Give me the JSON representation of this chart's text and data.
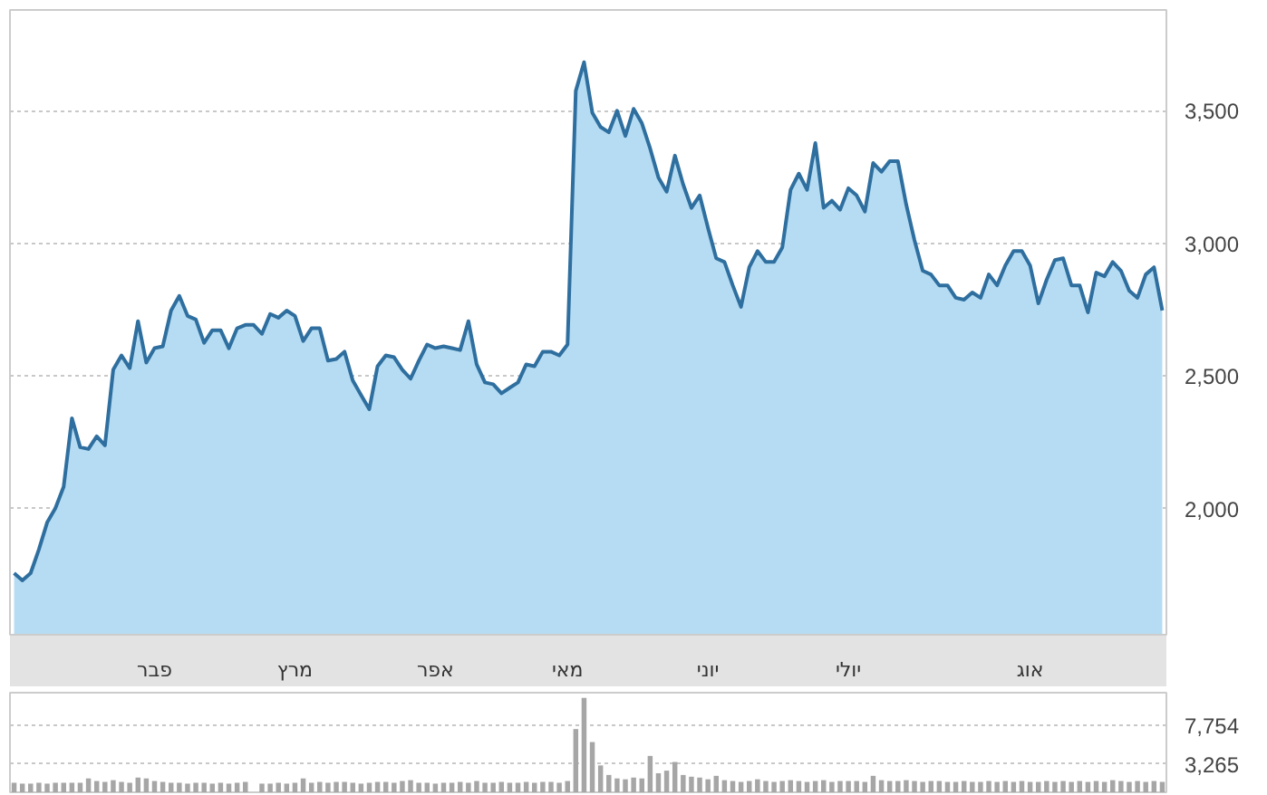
{
  "chart_data": [
    {
      "type": "area",
      "categories": [
        null,
        null,
        null,
        null,
        null,
        null,
        null,
        null,
        null,
        null,
        null,
        null,
        null,
        null,
        null,
        null,
        null,
        "פבר",
        null,
        null,
        null,
        null,
        null,
        null,
        null,
        null,
        null,
        null,
        null,
        null,
        null,
        null,
        null,
        null,
        "מרץ",
        null,
        null,
        null,
        null,
        null,
        null,
        null,
        null,
        null,
        null,
        null,
        null,
        null,
        null,
        null,
        null,
        "אפר",
        null,
        null,
        null,
        null,
        null,
        null,
        null,
        null,
        null,
        null,
        null,
        null,
        null,
        null,
        null,
        "מאי",
        null,
        null,
        null,
        null,
        null,
        null,
        null,
        null,
        null,
        null,
        null,
        null,
        null,
        null,
        null,
        null,
        "יוני",
        null,
        null,
        null,
        null,
        null,
        null,
        null,
        null,
        null,
        null,
        null,
        null,
        null,
        null,
        null,
        null,
        "יולי",
        null,
        null,
        null,
        null,
        null,
        null,
        null,
        null,
        null,
        null,
        null,
        null,
        null,
        null,
        null,
        null,
        null,
        null,
        null,
        null,
        null,
        "אוג",
        null,
        null,
        null,
        null,
        null,
        null,
        null,
        null,
        null,
        null,
        null,
        null,
        null,
        null,
        null,
        null
      ],
      "series": [
        {
          "color": "#2f6f9f",
          "values": [
            1757,
            1730,
            1757,
            1846,
            1948,
            2002,
            2083,
            2341,
            2232,
            2225,
            2273,
            2239,
            2524,
            2578,
            2530,
            2707,
            2551,
            2605,
            2612,
            2747,
            2802,
            2727,
            2713,
            2625,
            2673,
            2673,
            2605,
            2680,
            2693,
            2693,
            2659,
            2734,
            2720,
            2747,
            2727,
            2632,
            2680,
            2680,
            2558,
            2564,
            2592,
            2483,
            2429,
            2375,
            2537,
            2578,
            2571,
            2524,
            2490,
            2558,
            2619,
            2605,
            2612,
            2605,
            2598,
            2707,
            2544,
            2476,
            2469,
            2435,
            2456,
            2476,
            2544,
            2537,
            2592,
            2592,
            2578,
            2619,
            3575,
            3683,
            3493,
            3439,
            3419,
            3500,
            3405,
            3507,
            3453,
            3358,
            3249,
            3195,
            3331,
            3222,
            3134,
            3181,
            3059,
            2944,
            2930,
            2842,
            2761,
            2910,
            2971,
            2930,
            2930,
            2985,
            3202,
            3263,
            3202,
            3378,
            3134,
            3161,
            3127,
            3208,
            3181,
            3120,
            3303,
            3270,
            3310,
            3310,
            3147,
            3012,
            2897,
            2883,
            2842,
            2842,
            2795,
            2788,
            2815,
            2795,
            2883,
            2842,
            2917,
            2971,
            2971,
            2917,
            2774,
            2863,
            2937,
            2944,
            2842,
            2842,
            2740,
            2890,
            2876,
            2930,
            2897,
            2822,
            2795,
            2883,
            2910,
            2747
          ]
        }
      ],
      "ylim": [
        1525,
        3880
      ],
      "yticks": [
        {
          "value": 2000,
          "label": "2,000"
        },
        {
          "value": 2500,
          "label": "2,500"
        },
        {
          "value": 3000,
          "label": "3,000"
        },
        {
          "value": 3500,
          "label": "3,500"
        }
      ],
      "grid": "y"
    },
    {
      "type": "bar",
      "categories": [
        null,
        null,
        null,
        null,
        null,
        null,
        null,
        null,
        null,
        null,
        null,
        null,
        null,
        null,
        null,
        null,
        null,
        null,
        null,
        null,
        null,
        null,
        null,
        null,
        null,
        null,
        null,
        null,
        null,
        null,
        null,
        null,
        null,
        null,
        null,
        null,
        null,
        null,
        null,
        null,
        null,
        null,
        null,
        null,
        null,
        null,
        null,
        null,
        null,
        null,
        null,
        null,
        null,
        null,
        null,
        null,
        null,
        null,
        null,
        null,
        null,
        null,
        null,
        null,
        null,
        null,
        null,
        null,
        null,
        null,
        null,
        null,
        null,
        null,
        null,
        null,
        null,
        null,
        null,
        null,
        null,
        null,
        null,
        null,
        null,
        null,
        null,
        null,
        null,
        null,
        null,
        null,
        null,
        null,
        null,
        null,
        null,
        null,
        null,
        null,
        null,
        null,
        null,
        null,
        null,
        null,
        null,
        null,
        null,
        null,
        null,
        null,
        null,
        null,
        null,
        null,
        null,
        null,
        null,
        null,
        null,
        null,
        null,
        null,
        null,
        null,
        null,
        null,
        null,
        null,
        null,
        null,
        null,
        null,
        null,
        null,
        null,
        null,
        null,
        null
      ],
      "series": [
        {
          "color": "#a6a6a6",
          "values": [
            1100,
            1000,
            1000,
            1100,
            1000,
            1100,
            1100,
            1100,
            1100,
            1600,
            1300,
            1200,
            1400,
            1200,
            1100,
            1700,
            1600,
            1300,
            1200,
            1100,
            1100,
            1000,
            1100,
            1100,
            1000,
            1100,
            1000,
            1100,
            1200,
            null,
            1000,
            1000,
            1100,
            1000,
            1100,
            1600,
            1100,
            1200,
            1100,
            1200,
            1200,
            1100,
            1000,
            1100,
            1200,
            1200,
            1100,
            1300,
            1400,
            1100,
            1100,
            1000,
            1100,
            1100,
            1200,
            1100,
            1300,
            1100,
            1100,
            1200,
            1100,
            1100,
            1200,
            1100,
            1200,
            1200,
            1100,
            1300,
            7300,
            10900,
            5800,
            3100,
            2000,
            1600,
            1500,
            1700,
            1600,
            4200,
            2200,
            2500,
            3500,
            2000,
            1800,
            1700,
            1500,
            1900,
            1400,
            1300,
            1200,
            1300,
            1500,
            1300,
            1200,
            1300,
            1400,
            1300,
            1200,
            1300,
            1400,
            1200,
            1300,
            1300,
            1300,
            1200,
            1900,
            1400,
            1300,
            1300,
            1400,
            1300,
            1200,
            1300,
            1300,
            1200,
            1200,
            1300,
            1200,
            1200,
            1300,
            1200,
            1300,
            1200,
            1300,
            1200,
            1200,
            1300,
            1200,
            1300,
            1200,
            1300,
            1200,
            1300,
            1200,
            1400,
            1300,
            1200,
            1300,
            1200,
            1300,
            1200
          ]
        }
      ],
      "ylim": [
        0,
        11500
      ],
      "yticks": [
        {
          "value": 3265,
          "label": "3,265"
        },
        {
          "value": 7754,
          "label": "7,754"
        }
      ],
      "grid": "y",
      "tick_labels": "y"
    }
  ]
}
